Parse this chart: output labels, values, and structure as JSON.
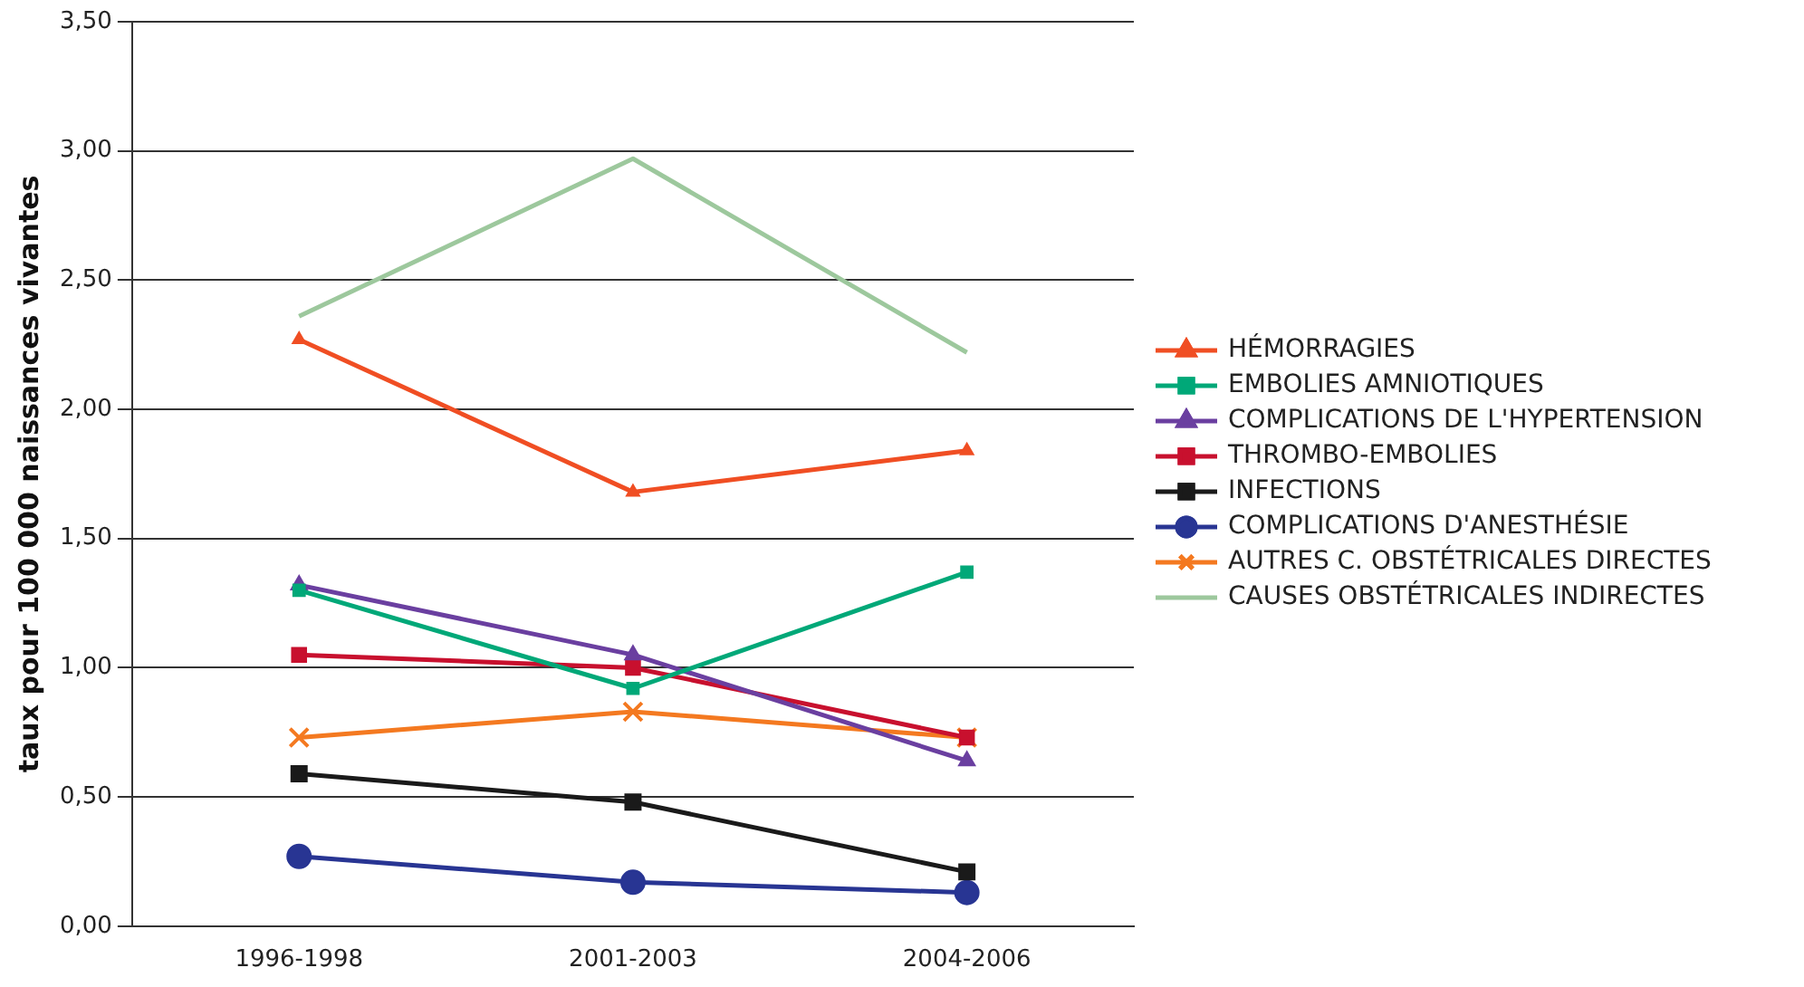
{
  "chart_data": {
    "type": "line",
    "ylabel": "taux pour 100 000 naissances vivantes",
    "categories": [
      "1996-1998",
      "2001-2003",
      "2004-2006"
    ],
    "series": [
      {
        "name": "HÉMORRAGIES",
        "color": "#f04e23",
        "marker": "triangle",
        "values": [
          2.27,
          1.68,
          1.84
        ]
      },
      {
        "name": "EMBOLIES AMNIOTIQUES",
        "color": "#00a878",
        "marker": "square",
        "values": [
          1.3,
          0.92,
          1.37
        ]
      },
      {
        "name": "COMPLICATIONS DE L'HYPERTENSION",
        "color": "#6a3fa0",
        "marker": "triangle",
        "values": [
          1.32,
          1.05,
          0.64
        ]
      },
      {
        "name": "THROMBO-EMBOLIES",
        "color": "#c8102e",
        "marker": "square",
        "values": [
          1.05,
          1.0,
          0.73
        ]
      },
      {
        "name": "INFECTIONS",
        "color": "#1a1a1a",
        "marker": "square",
        "values": [
          0.59,
          0.48,
          0.21
        ]
      },
      {
        "name": "COMPLICATIONS D'ANESTHÉSIE",
        "color": "#283593",
        "marker": "circle",
        "values": [
          0.27,
          0.17,
          0.13
        ]
      },
      {
        "name": "AUTRES C. OBSTÉTRICALES DIRECTES",
        "color": "#f47920",
        "marker": "cross",
        "values": [
          0.73,
          0.83,
          0.73
        ]
      },
      {
        "name": "CAUSES OBSTÉTRICALES INDIRECTES",
        "color": "#9dc89d",
        "marker": "none",
        "values": [
          2.36,
          2.97,
          2.22
        ]
      }
    ],
    "ylim": [
      0,
      3.5
    ],
    "yticks": [
      {
        "value": 0,
        "label": "0,00"
      },
      {
        "value": 0.5,
        "label": "0,50"
      },
      {
        "value": 1,
        "label": "1,00"
      },
      {
        "value": 1.5,
        "label": "1,50"
      },
      {
        "value": 2,
        "label": "2,00"
      },
      {
        "value": 2.5,
        "label": "2,50"
      },
      {
        "value": 3,
        "label": "3,00"
      },
      {
        "value": 3.5,
        "label": "3,50"
      }
    ],
    "grid": "y",
    "legend": "right",
    "line_style": "solid"
  }
}
